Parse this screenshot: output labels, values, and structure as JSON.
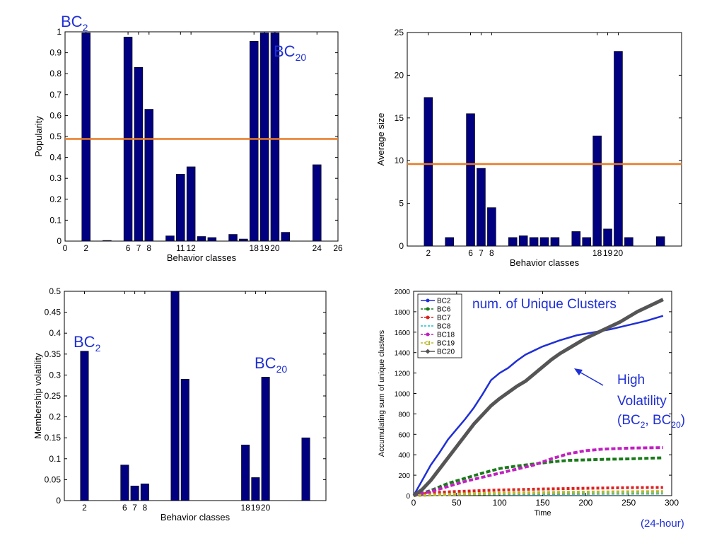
{
  "chart_data": [
    {
      "type": "bar",
      "xlabel": "Behavior classes",
      "ylabel": "Popularity",
      "xlim": [
        0,
        26
      ],
      "ylim": [
        0,
        1
      ],
      "xticks": [
        0,
        2,
        6,
        7,
        8,
        11,
        12,
        18,
        19,
        20,
        24,
        26
      ],
      "xtick_labels": [
        "0",
        "2",
        "6",
        "7",
        "8",
        "11",
        "12",
        "18",
        "19",
        "20",
        "24",
        "26"
      ],
      "yticks": [
        0,
        0.1,
        0.2,
        0.3,
        0.4,
        0.5,
        0.6,
        0.7,
        0.8,
        0.9,
        1
      ],
      "ytick_labels": [
        "0",
        "0.1",
        "0.2",
        "0.3",
        "0.4",
        "0.5",
        "0.6",
        "0.7",
        "0.8",
        "0.9",
        "1"
      ],
      "x": [
        2,
        4,
        6,
        7,
        8,
        10,
        11,
        12,
        13,
        14,
        16,
        17,
        18,
        19,
        20,
        21,
        24
      ],
      "values": [
        0.995,
        0.003,
        0.975,
        0.83,
        0.63,
        0.025,
        0.32,
        0.355,
        0.022,
        0.017,
        0.032,
        0.01,
        0.955,
        0.995,
        0.995,
        0.042,
        0.365
      ],
      "hline": 0.488,
      "bar_color": "#000080",
      "hline_color": "#e87a24",
      "annotations": [
        {
          "base": "BC",
          "sub": "2"
        },
        {
          "base": "BC",
          "sub": "20"
        }
      ]
    },
    {
      "type": "bar",
      "xlabel": "Behavior classes",
      "ylabel": "Average size",
      "xlim": [
        0,
        26
      ],
      "ylim": [
        0,
        25
      ],
      "xticks": [
        2,
        6,
        7,
        8,
        18,
        19,
        20
      ],
      "xtick_labels": [
        "2",
        "6",
        "7",
        "8",
        "18",
        "19",
        "20"
      ],
      "yticks": [
        0,
        5,
        10,
        15,
        20,
        25
      ],
      "ytick_labels": [
        "0",
        "5",
        "10",
        "15",
        "20",
        "25"
      ],
      "x": [
        2,
        4,
        6,
        7,
        8,
        10,
        11,
        12,
        13,
        14,
        16,
        17,
        18,
        19,
        20,
        21,
        24
      ],
      "values": [
        17.4,
        1.0,
        15.5,
        9.1,
        4.5,
        1.0,
        1.2,
        1.0,
        1.0,
        1.0,
        1.7,
        1.0,
        12.9,
        2.0,
        22.8,
        1.0,
        1.1
      ],
      "hline": 9.6,
      "bar_color": "#000080",
      "hline_color": "#e87a24"
    },
    {
      "type": "bar",
      "xlabel": "Behavior classes",
      "ylabel": "Membership volatility",
      "xlim": [
        0,
        26
      ],
      "ylim": [
        0,
        0.5
      ],
      "xticks": [
        2,
        6,
        7,
        8,
        18,
        19,
        20
      ],
      "xtick_labels": [
        "2",
        "6",
        "7",
        "8",
        "18",
        "19",
        "20"
      ],
      "yticks": [
        0,
        0.05,
        0.1,
        0.15,
        0.2,
        0.25,
        0.3,
        0.35,
        0.4,
        0.45,
        0.5
      ],
      "ytick_labels": [
        "0",
        "0.05",
        "0.1",
        "0.15",
        "0.2",
        "0.25",
        "0.3",
        "0.35",
        "0.4",
        "0.45",
        "0.5"
      ],
      "x": [
        2,
        6,
        7,
        8,
        11,
        12,
        18,
        19,
        20,
        24
      ],
      "values": [
        0.357,
        0.085,
        0.035,
        0.04,
        0.5,
        0.29,
        0.133,
        0.055,
        0.295,
        0.15
      ],
      "bar_color": "#000080",
      "annotations": [
        {
          "base": "BC",
          "sub": "2"
        },
        {
          "base": "BC",
          "sub": "20"
        }
      ]
    },
    {
      "type": "line",
      "xlabel": "Time",
      "ylabel": "Accumulating sum of unique clusters",
      "xlim": [
        0,
        300
      ],
      "ylim": [
        0,
        2000
      ],
      "xticks": [
        0,
        50,
        100,
        150,
        200,
        250,
        300
      ],
      "xtick_labels": [
        "0",
        "50",
        "100",
        "150",
        "200",
        "250",
        "300"
      ],
      "yticks": [
        0,
        200,
        400,
        600,
        800,
        1000,
        1200,
        1400,
        1600,
        1800,
        2000
      ],
      "ytick_labels": [
        "0",
        "200",
        "400",
        "600",
        "800",
        "1000",
        "1200",
        "1400",
        "1600",
        "1800",
        "2000"
      ],
      "legend_position": "top-left",
      "series": [
        {
          "name": "BC2",
          "color": "#1f2fd6",
          "marker": "dot",
          "dash": "",
          "width": 2.5,
          "points": [
            [
              0,
              0
            ],
            [
              10,
              150
            ],
            [
              20,
              300
            ],
            [
              30,
              420
            ],
            [
              40,
              550
            ],
            [
              50,
              650
            ],
            [
              60,
              750
            ],
            [
              70,
              860
            ],
            [
              80,
              990
            ],
            [
              90,
              1130
            ],
            [
              100,
              1200
            ],
            [
              110,
              1250
            ],
            [
              120,
              1320
            ],
            [
              130,
              1380
            ],
            [
              140,
              1420
            ],
            [
              150,
              1460
            ],
            [
              170,
              1520
            ],
            [
              190,
              1570
            ],
            [
              210,
              1600
            ],
            [
              230,
              1630
            ],
            [
              250,
              1670
            ],
            [
              270,
              1710
            ],
            [
              290,
              1760
            ]
          ]
        },
        {
          "name": "BC6",
          "color": "#1a7a1a",
          "marker": "dot",
          "dash": "6,3",
          "width": 4,
          "points": [
            [
              0,
              0
            ],
            [
              20,
              50
            ],
            [
              40,
              120
            ],
            [
              60,
              170
            ],
            [
              80,
              220
            ],
            [
              100,
              265
            ],
            [
              120,
              290
            ],
            [
              140,
              310
            ],
            [
              160,
              330
            ],
            [
              180,
              345
            ],
            [
              200,
              350
            ],
            [
              220,
              355
            ],
            [
              250,
              360
            ],
            [
              290,
              370
            ]
          ]
        },
        {
          "name": "BC7",
          "color": "#e02020",
          "marker": "dot",
          "dash": "4,3",
          "width": 4,
          "points": [
            [
              0,
              0
            ],
            [
              20,
              30
            ],
            [
              50,
              40
            ],
            [
              100,
              55
            ],
            [
              150,
              65
            ],
            [
              200,
              72
            ],
            [
              250,
              78
            ],
            [
              290,
              80
            ]
          ]
        },
        {
          "name": "BC8",
          "color": "#20c0c0",
          "marker": "none",
          "dash": "4,3",
          "width": 2,
          "points": [
            [
              0,
              0
            ],
            [
              50,
              8
            ],
            [
              100,
              12
            ],
            [
              200,
              15
            ],
            [
              290,
              18
            ]
          ]
        },
        {
          "name": "BC18",
          "color": "#c020c0",
          "marker": "dot",
          "dash": "6,3",
          "width": 4,
          "points": [
            [
              0,
              0
            ],
            [
              20,
              40
            ],
            [
              40,
              90
            ],
            [
              60,
              140
            ],
            [
              80,
              180
            ],
            [
              100,
              220
            ],
            [
              120,
              260
            ],
            [
              140,
              300
            ],
            [
              160,
              360
            ],
            [
              180,
              410
            ],
            [
              200,
              440
            ],
            [
              220,
              455
            ],
            [
              250,
              465
            ],
            [
              290,
              470
            ]
          ]
        },
        {
          "name": "BC19",
          "color": "#b8b82a",
          "marker": "square",
          "dash": "4,3",
          "width": 4,
          "points": [
            [
              0,
              0
            ],
            [
              50,
              15
            ],
            [
              100,
              25
            ],
            [
              150,
              30
            ],
            [
              200,
              35
            ],
            [
              250,
              38
            ],
            [
              290,
              40
            ]
          ]
        },
        {
          "name": "BC20",
          "color": "#555555",
          "marker": "diamond",
          "dash": "",
          "width": 5,
          "points": [
            [
              0,
              0
            ],
            [
              10,
              60
            ],
            [
              20,
              150
            ],
            [
              30,
              260
            ],
            [
              40,
              370
            ],
            [
              50,
              480
            ],
            [
              60,
              590
            ],
            [
              70,
              700
            ],
            [
              80,
              790
            ],
            [
              90,
              880
            ],
            [
              100,
              950
            ],
            [
              110,
              1010
            ],
            [
              120,
              1070
            ],
            [
              130,
              1120
            ],
            [
              140,
              1190
            ],
            [
              150,
              1260
            ],
            [
              160,
              1330
            ],
            [
              170,
              1390
            ],
            [
              180,
              1440
            ],
            [
              190,
              1490
            ],
            [
              200,
              1540
            ],
            [
              210,
              1580
            ],
            [
              220,
              1620
            ],
            [
              230,
              1660
            ],
            [
              240,
              1700
            ],
            [
              250,
              1750
            ],
            [
              260,
              1800
            ],
            [
              270,
              1840
            ],
            [
              280,
              1880
            ],
            [
              290,
              1920
            ]
          ]
        }
      ],
      "annotations": {
        "title_text": "num. of Unique Clusters",
        "high_volatility_line1": "High",
        "high_volatility_line2": "Volatility",
        "bc_base": "BC",
        "bc_a_sub": "2",
        "bc_b_sub": "20",
        "paren_open": "(",
        "comma": ", ",
        "paren_close": ")",
        "note": "(24-hour)"
      }
    }
  ]
}
